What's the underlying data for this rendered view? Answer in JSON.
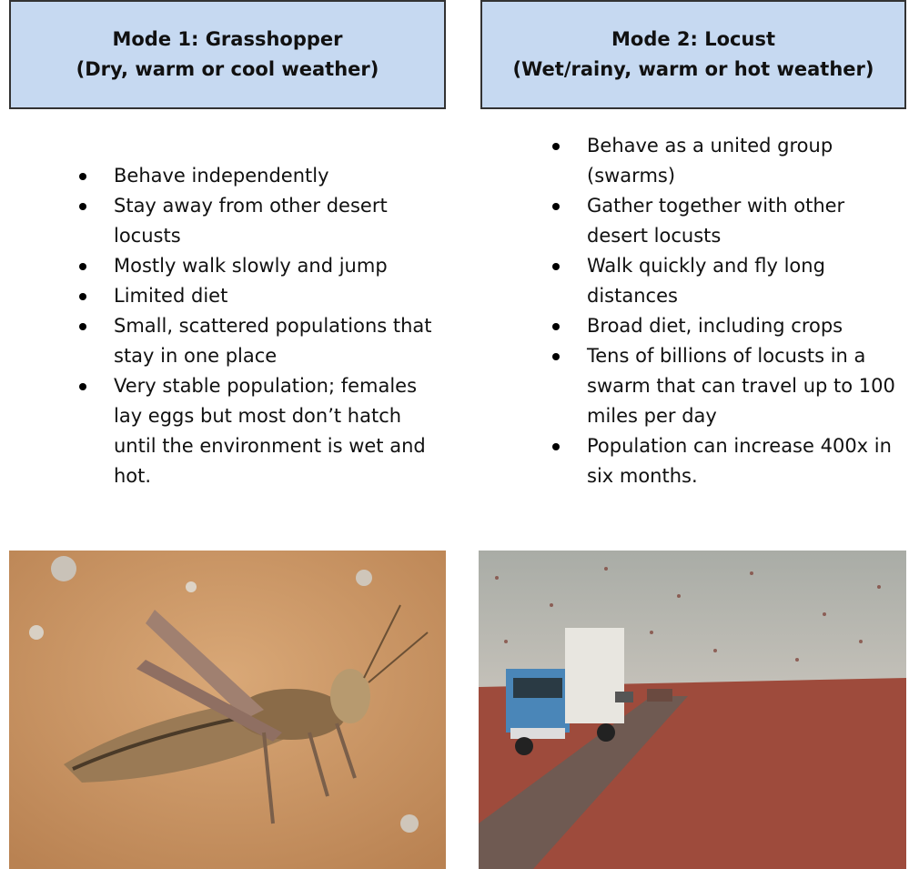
{
  "columns": [
    {
      "title": "Mode 1: Grasshopper",
      "subtitle": "(Dry, warm or cool weather)",
      "bullets": [
        "Behave independently",
        "Stay away from other desert locusts",
        "Mostly walk slowly and jump",
        "Limited diet",
        "Small, scattered populations that stay in one place",
        "Very stable population; females lay eggs but most don’t hatch until the environment is wet and hot."
      ]
    },
    {
      "title": "Mode 2: Locust",
      "subtitle": "(Wet/rainy, warm or hot weather)",
      "bullets": [
        "Behave as a united group (swarms)",
        "Gather together with other desert locusts",
        "Walk quickly and fly long distances",
        "Broad diet, including crops",
        "Tens of billions of locusts in a swarm that can travel up to 100 miles per day",
        "Population can increase 400x in six months."
      ]
    }
  ]
}
